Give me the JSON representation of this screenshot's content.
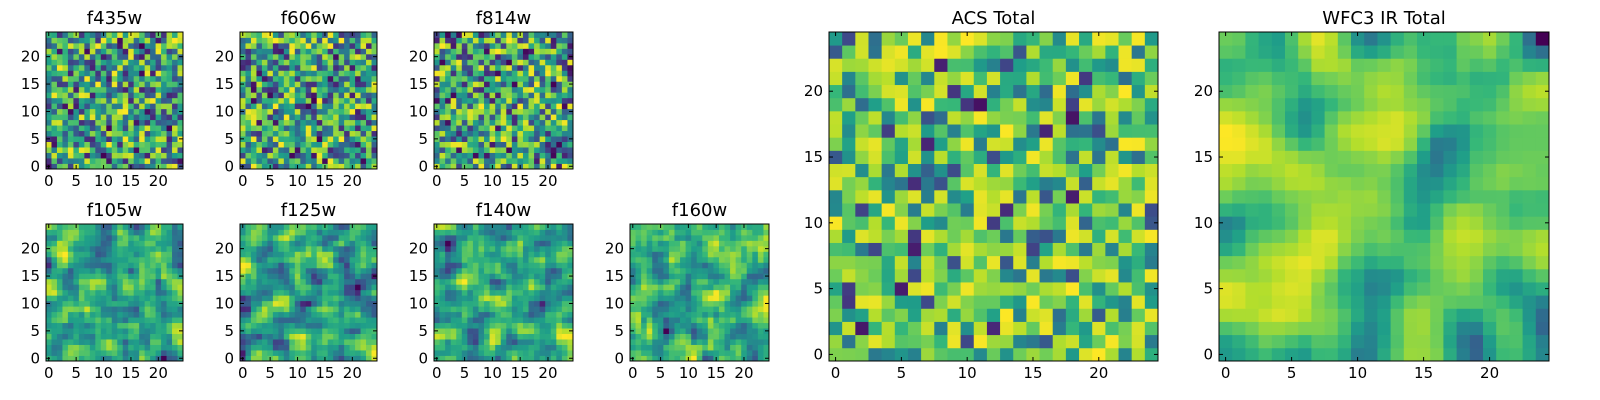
{
  "chart_data": [
    {
      "type": "heatmap",
      "title": "f435w",
      "size": 25,
      "xticks": [
        0,
        5,
        10,
        15,
        20
      ],
      "yticks": [
        0,
        5,
        10,
        15,
        20
      ],
      "xlim": [
        -0.5,
        24.5
      ],
      "ylim": [
        -0.5,
        24.5
      ],
      "colormap": "viridis",
      "grid": false,
      "texture": "uniform noise"
    },
    {
      "type": "heatmap",
      "title": "f606w",
      "size": 25,
      "xticks": [
        0,
        5,
        10,
        15,
        20
      ],
      "yticks": [
        0,
        5,
        10,
        15,
        20
      ],
      "xlim": [
        -0.5,
        24.5
      ],
      "ylim": [
        -0.5,
        24.5
      ],
      "colormap": "viridis",
      "grid": false,
      "texture": "uniform noise"
    },
    {
      "type": "heatmap",
      "title": "f814w",
      "size": 25,
      "xticks": [
        0,
        5,
        10,
        15,
        20
      ],
      "yticks": [
        0,
        5,
        10,
        15,
        20
      ],
      "xlim": [
        -0.5,
        24.5
      ],
      "ylim": [
        -0.5,
        24.5
      ],
      "colormap": "viridis",
      "grid": false,
      "texture": "uniform noise"
    },
    {
      "type": "heatmap",
      "title": "f105w",
      "size": 25,
      "xticks": [
        0,
        5,
        10,
        15,
        20
      ],
      "yticks": [
        0,
        5,
        10,
        15,
        20
      ],
      "xlim": [
        -0.5,
        24.5
      ],
      "ylim": [
        -0.5,
        24.5
      ],
      "colormap": "viridis",
      "grid": false,
      "texture": "correlated noise"
    },
    {
      "type": "heatmap",
      "title": "f125w",
      "size": 25,
      "xticks": [
        0,
        5,
        10,
        15,
        20
      ],
      "yticks": [
        0,
        5,
        10,
        15,
        20
      ],
      "xlim": [
        -0.5,
        24.5
      ],
      "ylim": [
        -0.5,
        24.5
      ],
      "colormap": "viridis",
      "grid": false,
      "texture": "correlated noise"
    },
    {
      "type": "heatmap",
      "title": "f140w",
      "size": 25,
      "xticks": [
        0,
        5,
        10,
        15,
        20
      ],
      "yticks": [
        0,
        5,
        10,
        15,
        20
      ],
      "xlim": [
        -0.5,
        24.5
      ],
      "ylim": [
        -0.5,
        24.5
      ],
      "colormap": "viridis",
      "grid": false,
      "texture": "correlated noise"
    },
    {
      "type": "heatmap",
      "title": "f160w",
      "size": 25,
      "xticks": [
        0,
        5,
        10,
        15,
        20
      ],
      "yticks": [
        0,
        5,
        10,
        15,
        20
      ],
      "xlim": [
        -0.5,
        24.5
      ],
      "ylim": [
        -0.5,
        24.5
      ],
      "colormap": "viridis",
      "grid": false,
      "texture": "correlated noise"
    },
    {
      "type": "heatmap",
      "title": "ACS Total",
      "size": 25,
      "xticks": [
        0,
        5,
        10,
        15,
        20
      ],
      "yticks": [
        0,
        5,
        10,
        15,
        20
      ],
      "xlim": [
        -0.5,
        24.5
      ],
      "ylim": [
        -0.5,
        24.5
      ],
      "colormap": "viridis",
      "grid": false,
      "texture": "mostly high values"
    },
    {
      "type": "heatmap",
      "title": "WFC3 IR Total",
      "size": 25,
      "xticks": [
        0,
        5,
        10,
        15,
        20
      ],
      "yticks": [
        0,
        5,
        10,
        15,
        20
      ],
      "xlim": [
        -0.5,
        24.5
      ],
      "ylim": [
        -0.5,
        24.5
      ],
      "colormap": "viridis",
      "grid": false,
      "texture": "smooth, mostly high values"
    }
  ]
}
